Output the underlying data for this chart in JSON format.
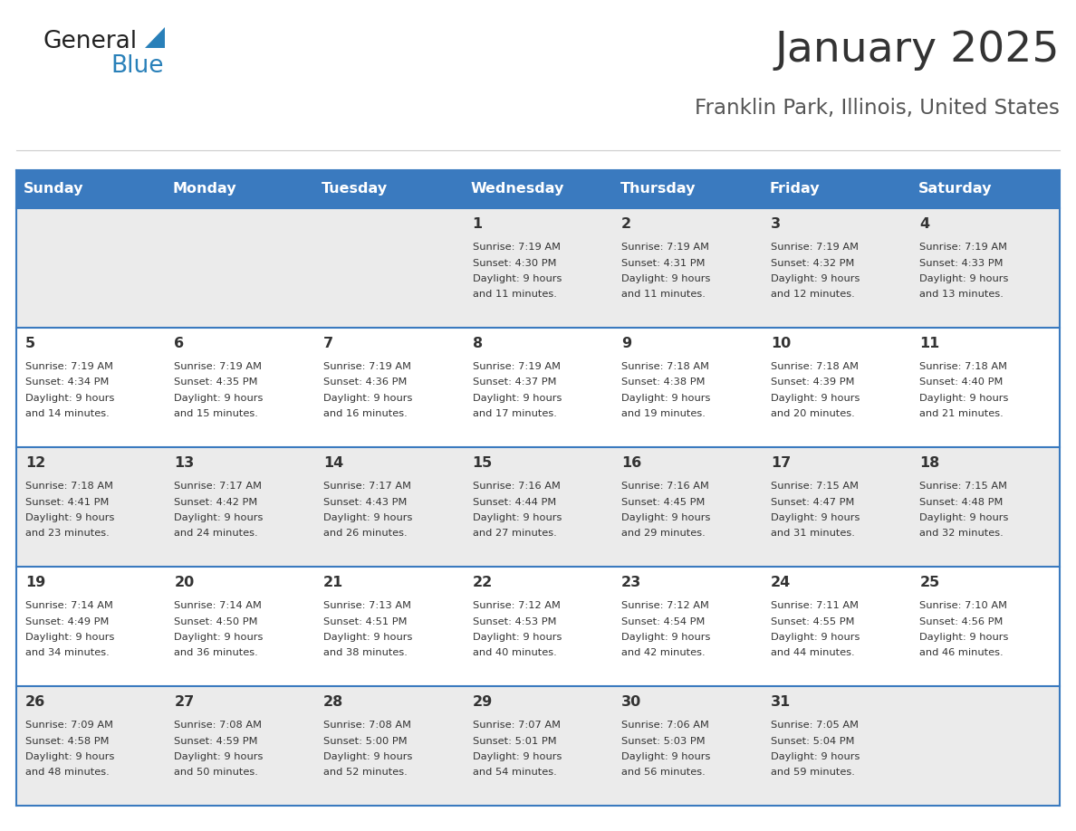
{
  "title": "January 2025",
  "subtitle": "Franklin Park, Illinois, United States",
  "days_of_week": [
    "Sunday",
    "Monday",
    "Tuesday",
    "Wednesday",
    "Thursday",
    "Friday",
    "Saturday"
  ],
  "header_bg": "#3a7abf",
  "header_text_color": "#ffffff",
  "row_bg_odd": "#ebebeb",
  "row_bg_even": "#ffffff",
  "cell_text_color": "#333333",
  "grid_line_color": "#3a7abf",
  "title_color": "#333333",
  "subtitle_color": "#555555",
  "logo_general_color": "#222222",
  "logo_blue_color": "#2980b9",
  "figsize": [
    11.88,
    9.18
  ],
  "dpi": 100,
  "calendar_data": [
    {
      "day": 1,
      "col": 3,
      "row": 0,
      "sunrise": "7:19 AM",
      "sunset": "4:30 PM",
      "daylight_hours": 9,
      "daylight_minutes": 11
    },
    {
      "day": 2,
      "col": 4,
      "row": 0,
      "sunrise": "7:19 AM",
      "sunset": "4:31 PM",
      "daylight_hours": 9,
      "daylight_minutes": 11
    },
    {
      "day": 3,
      "col": 5,
      "row": 0,
      "sunrise": "7:19 AM",
      "sunset": "4:32 PM",
      "daylight_hours": 9,
      "daylight_minutes": 12
    },
    {
      "day": 4,
      "col": 6,
      "row": 0,
      "sunrise": "7:19 AM",
      "sunset": "4:33 PM",
      "daylight_hours": 9,
      "daylight_minutes": 13
    },
    {
      "day": 5,
      "col": 0,
      "row": 1,
      "sunrise": "7:19 AM",
      "sunset": "4:34 PM",
      "daylight_hours": 9,
      "daylight_minutes": 14
    },
    {
      "day": 6,
      "col": 1,
      "row": 1,
      "sunrise": "7:19 AM",
      "sunset": "4:35 PM",
      "daylight_hours": 9,
      "daylight_minutes": 15
    },
    {
      "day": 7,
      "col": 2,
      "row": 1,
      "sunrise": "7:19 AM",
      "sunset": "4:36 PM",
      "daylight_hours": 9,
      "daylight_minutes": 16
    },
    {
      "day": 8,
      "col": 3,
      "row": 1,
      "sunrise": "7:19 AM",
      "sunset": "4:37 PM",
      "daylight_hours": 9,
      "daylight_minutes": 17
    },
    {
      "day": 9,
      "col": 4,
      "row": 1,
      "sunrise": "7:18 AM",
      "sunset": "4:38 PM",
      "daylight_hours": 9,
      "daylight_minutes": 19
    },
    {
      "day": 10,
      "col": 5,
      "row": 1,
      "sunrise": "7:18 AM",
      "sunset": "4:39 PM",
      "daylight_hours": 9,
      "daylight_minutes": 20
    },
    {
      "day": 11,
      "col": 6,
      "row": 1,
      "sunrise": "7:18 AM",
      "sunset": "4:40 PM",
      "daylight_hours": 9,
      "daylight_minutes": 21
    },
    {
      "day": 12,
      "col": 0,
      "row": 2,
      "sunrise": "7:18 AM",
      "sunset": "4:41 PM",
      "daylight_hours": 9,
      "daylight_minutes": 23
    },
    {
      "day": 13,
      "col": 1,
      "row": 2,
      "sunrise": "7:17 AM",
      "sunset": "4:42 PM",
      "daylight_hours": 9,
      "daylight_minutes": 24
    },
    {
      "day": 14,
      "col": 2,
      "row": 2,
      "sunrise": "7:17 AM",
      "sunset": "4:43 PM",
      "daylight_hours": 9,
      "daylight_minutes": 26
    },
    {
      "day": 15,
      "col": 3,
      "row": 2,
      "sunrise": "7:16 AM",
      "sunset": "4:44 PM",
      "daylight_hours": 9,
      "daylight_minutes": 27
    },
    {
      "day": 16,
      "col": 4,
      "row": 2,
      "sunrise": "7:16 AM",
      "sunset": "4:45 PM",
      "daylight_hours": 9,
      "daylight_minutes": 29
    },
    {
      "day": 17,
      "col": 5,
      "row": 2,
      "sunrise": "7:15 AM",
      "sunset": "4:47 PM",
      "daylight_hours": 9,
      "daylight_minutes": 31
    },
    {
      "day": 18,
      "col": 6,
      "row": 2,
      "sunrise": "7:15 AM",
      "sunset": "4:48 PM",
      "daylight_hours": 9,
      "daylight_minutes": 32
    },
    {
      "day": 19,
      "col": 0,
      "row": 3,
      "sunrise": "7:14 AM",
      "sunset": "4:49 PM",
      "daylight_hours": 9,
      "daylight_minutes": 34
    },
    {
      "day": 20,
      "col": 1,
      "row": 3,
      "sunrise": "7:14 AM",
      "sunset": "4:50 PM",
      "daylight_hours": 9,
      "daylight_minutes": 36
    },
    {
      "day": 21,
      "col": 2,
      "row": 3,
      "sunrise": "7:13 AM",
      "sunset": "4:51 PM",
      "daylight_hours": 9,
      "daylight_minutes": 38
    },
    {
      "day": 22,
      "col": 3,
      "row": 3,
      "sunrise": "7:12 AM",
      "sunset": "4:53 PM",
      "daylight_hours": 9,
      "daylight_minutes": 40
    },
    {
      "day": 23,
      "col": 4,
      "row": 3,
      "sunrise": "7:12 AM",
      "sunset": "4:54 PM",
      "daylight_hours": 9,
      "daylight_minutes": 42
    },
    {
      "day": 24,
      "col": 5,
      "row": 3,
      "sunrise": "7:11 AM",
      "sunset": "4:55 PM",
      "daylight_hours": 9,
      "daylight_minutes": 44
    },
    {
      "day": 25,
      "col": 6,
      "row": 3,
      "sunrise": "7:10 AM",
      "sunset": "4:56 PM",
      "daylight_hours": 9,
      "daylight_minutes": 46
    },
    {
      "day": 26,
      "col": 0,
      "row": 4,
      "sunrise": "7:09 AM",
      "sunset": "4:58 PM",
      "daylight_hours": 9,
      "daylight_minutes": 48
    },
    {
      "day": 27,
      "col": 1,
      "row": 4,
      "sunrise": "7:08 AM",
      "sunset": "4:59 PM",
      "daylight_hours": 9,
      "daylight_minutes": 50
    },
    {
      "day": 28,
      "col": 2,
      "row": 4,
      "sunrise": "7:08 AM",
      "sunset": "5:00 PM",
      "daylight_hours": 9,
      "daylight_minutes": 52
    },
    {
      "day": 29,
      "col": 3,
      "row": 4,
      "sunrise": "7:07 AM",
      "sunset": "5:01 PM",
      "daylight_hours": 9,
      "daylight_minutes": 54
    },
    {
      "day": 30,
      "col": 4,
      "row": 4,
      "sunrise": "7:06 AM",
      "sunset": "5:03 PM",
      "daylight_hours": 9,
      "daylight_minutes": 56
    },
    {
      "day": 31,
      "col": 5,
      "row": 4,
      "sunrise": "7:05 AM",
      "sunset": "5:04 PM",
      "daylight_hours": 9,
      "daylight_minutes": 59
    }
  ]
}
